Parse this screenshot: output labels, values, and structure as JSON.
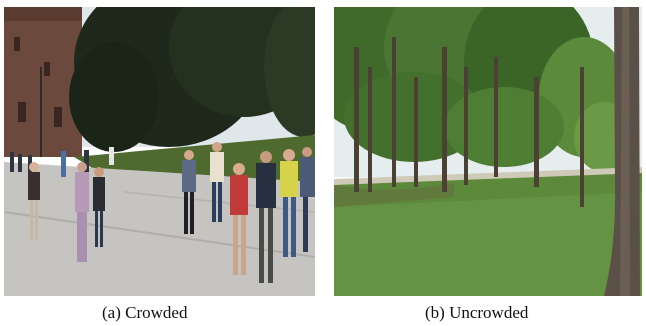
{
  "figure": {
    "panels": [
      {
        "caption": "(a) Crowded",
        "scene": "crowded-plaza-photo",
        "colors": {
          "sky": "#e4ebef",
          "building": "#6a4a3e",
          "tree": "#1f2a1c",
          "ground": "#c7c5c1",
          "grass": "#4f6a2e"
        }
      },
      {
        "caption": "(b) Uncrowded",
        "scene": "empty-park-photo",
        "colors": {
          "sky": "#e8eef0",
          "canopy": "#3f6a2a",
          "trunk": "#4a3f33",
          "grass": "#5d8a3a",
          "path": "#c9c3b3"
        }
      }
    ]
  }
}
